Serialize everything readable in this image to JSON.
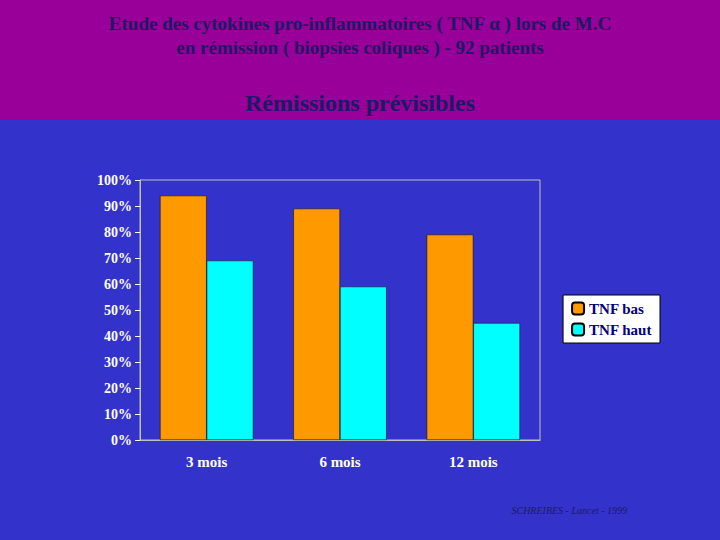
{
  "chart_data": {
    "type": "bar",
    "title": "Etude des cytokines pro-inflammatoires ( TNF α ) lors de M.C\nen rémission ( biopsies coliques ) - 92 patients",
    "subtitle": "Rémissions prévisibles",
    "annotation": "SCHREIBES - Lancet - 1999",
    "categories": [
      "3 mois",
      "6 mois",
      "12 mois"
    ],
    "series": [
      {
        "name": "TNF bas",
        "color": "#ff9900",
        "values": [
          94,
          89,
          79
        ]
      },
      {
        "name": "TNF haut",
        "color": "#00ffff",
        "values": [
          69,
          59,
          45
        ]
      }
    ],
    "ylim": [
      0,
      100
    ],
    "yticks": [
      {
        "value": 0,
        "label": "0%"
      },
      {
        "value": 10,
        "label": "10%"
      },
      {
        "value": 20,
        "label": "20%"
      },
      {
        "value": 30,
        "label": "30%"
      },
      {
        "value": 40,
        "label": "40%"
      },
      {
        "value": 50,
        "label": "50%"
      },
      {
        "value": 60,
        "label": "60%"
      },
      {
        "value": 70,
        "label": "70%"
      },
      {
        "value": 80,
        "label": "80%"
      },
      {
        "value": 90,
        "label": "90%"
      },
      {
        "value": 100,
        "label": "100%"
      }
    ],
    "grid": false,
    "legend": "right"
  }
}
